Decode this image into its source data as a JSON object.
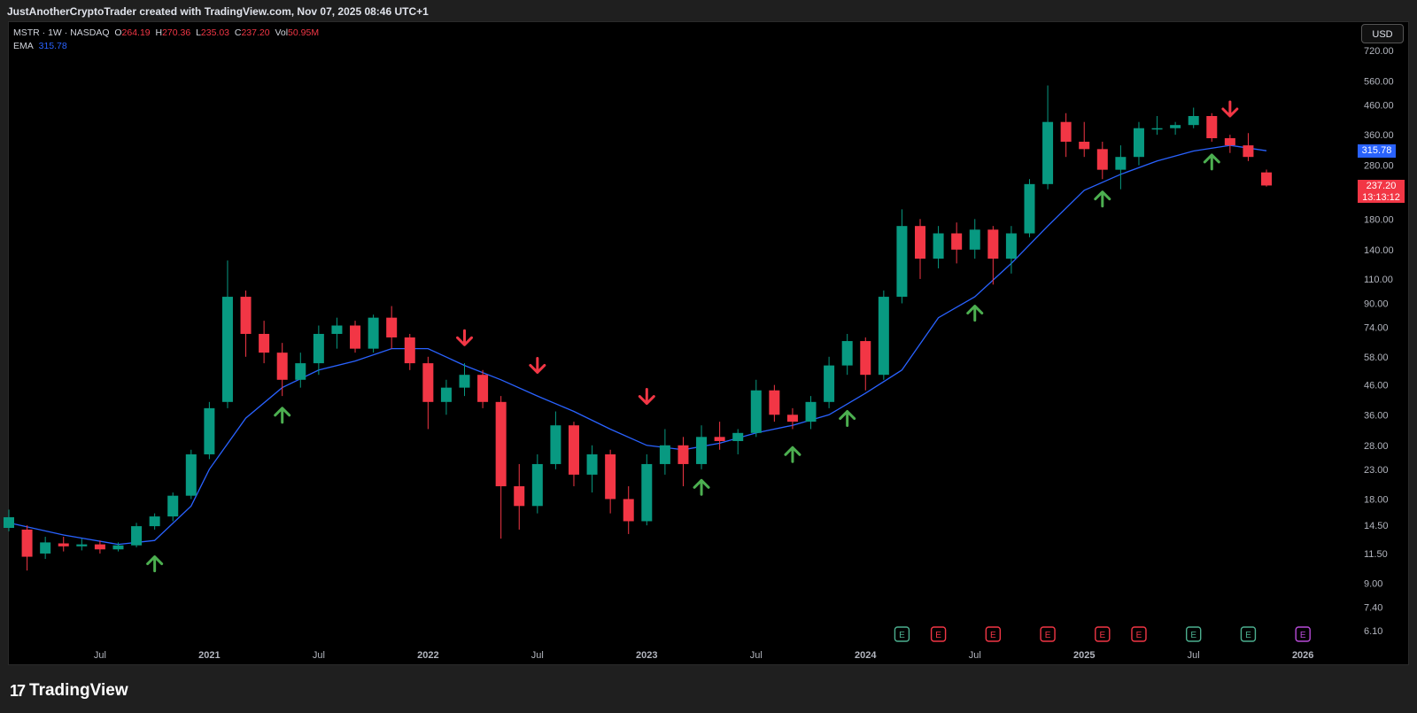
{
  "header": {
    "attribution": "JustAnotherCryptoTrader created with TradingView.com, Nov 07, 2025 08:46 UTC+1"
  },
  "legend": {
    "symbol": "MSTR · 1W · NASDAQ",
    "open_label": "O",
    "open": "264.19",
    "high_label": "H",
    "high": "270.36",
    "low_label": "L",
    "low": "235.03",
    "close_label": "C",
    "close": "237.20",
    "vol_label": "Vol",
    "volume": "50.95M",
    "ema_label": "EMA",
    "ema_value": "315.78"
  },
  "currency": "USD",
  "price_badges": {
    "ema": "315.78",
    "last": "237.20",
    "countdown": "13:13:12"
  },
  "footer": {
    "brand": "TradingView",
    "brand_mark": "17"
  },
  "colors": {
    "up": "#089981",
    "down": "#f23645",
    "ema": "#2962ff",
    "bg": "#000000",
    "arrow_up": "#4caf50",
    "arrow_down": "#f23645",
    "ema_badge": "#2962ff",
    "last_badge": "#f23645"
  },
  "chart_data": {
    "type": "candlestick",
    "scale": "log",
    "yticks": [
      "720.00",
      "560.00",
      "460.00",
      "360.00",
      "280.00",
      "180.00",
      "140.00",
      "110.00",
      "90.00",
      "74.00",
      "58.00",
      "46.00",
      "36.00",
      "28.00",
      "23.00",
      "18.00",
      "14.50",
      "11.50",
      "9.00",
      "7.40",
      "6.10"
    ],
    "xticks": [
      "Jul",
      "2021",
      "Jul",
      "2022",
      "Jul",
      "2023",
      "Jul",
      "2024",
      "Jul",
      "2025",
      "Jul",
      "2026"
    ],
    "ylim": [
      6.1,
      720
    ],
    "ema_series": [
      {
        "date": "2020-02",
        "value": 14.8
      },
      {
        "date": "2020-05",
        "value": 13.4
      },
      {
        "date": "2020-08",
        "value": 12.4
      },
      {
        "date": "2020-10",
        "value": 12.8
      },
      {
        "date": "2020-12",
        "value": 17
      },
      {
        "date": "2021-01",
        "value": 23
      },
      {
        "date": "2021-03",
        "value": 35
      },
      {
        "date": "2021-05",
        "value": 45
      },
      {
        "date": "2021-07",
        "value": 52
      },
      {
        "date": "2021-09",
        "value": 56
      },
      {
        "date": "2021-11",
        "value": 62
      },
      {
        "date": "2022-01",
        "value": 62
      },
      {
        "date": "2022-03",
        "value": 54
      },
      {
        "date": "2022-05",
        "value": 48
      },
      {
        "date": "2022-07",
        "value": 42
      },
      {
        "date": "2022-09",
        "value": 37
      },
      {
        "date": "2022-11",
        "value": 32
      },
      {
        "date": "2023-01",
        "value": 28
      },
      {
        "date": "2023-03",
        "value": 27
      },
      {
        "date": "2023-05",
        "value": 28.5
      },
      {
        "date": "2023-07",
        "value": 31
      },
      {
        "date": "2023-09",
        "value": 33
      },
      {
        "date": "2023-11",
        "value": 36
      },
      {
        "date": "2024-01",
        "value": 43
      },
      {
        "date": "2024-03",
        "value": 52
      },
      {
        "date": "2024-05",
        "value": 80
      },
      {
        "date": "2024-07",
        "value": 95
      },
      {
        "date": "2024-09",
        "value": 125
      },
      {
        "date": "2024-11",
        "value": 170
      },
      {
        "date": "2025-01",
        "value": 228
      },
      {
        "date": "2025-03",
        "value": 260
      },
      {
        "date": "2025-05",
        "value": 290
      },
      {
        "date": "2025-07",
        "value": 315
      },
      {
        "date": "2025-09",
        "value": 330
      },
      {
        "date": "2025-11",
        "value": 315.78
      }
    ],
    "candles": [
      {
        "date": "2020-02",
        "o": 14.2,
        "h": 16.5,
        "l": 13.8,
        "c": 15.5
      },
      {
        "date": "2020-03",
        "o": 14,
        "h": 14.5,
        "l": 10,
        "c": 11.2
      },
      {
        "date": "2020-04",
        "o": 11.5,
        "h": 13.2,
        "l": 11,
        "c": 12.6
      },
      {
        "date": "2020-05",
        "o": 12.5,
        "h": 13.2,
        "l": 11.7,
        "c": 12.2
      },
      {
        "date": "2020-06",
        "o": 12.2,
        "h": 13,
        "l": 11.8,
        "c": 12.4
      },
      {
        "date": "2020-07",
        "o": 12.4,
        "h": 12.8,
        "l": 11.5,
        "c": 11.9
      },
      {
        "date": "2020-08",
        "o": 11.9,
        "h": 12.6,
        "l": 11.7,
        "c": 12.3
      },
      {
        "date": "2020-09",
        "o": 12.3,
        "h": 14.8,
        "l": 12.1,
        "c": 14.4
      },
      {
        "date": "2020-10",
        "o": 14.4,
        "h": 16,
        "l": 14,
        "c": 15.6
      },
      {
        "date": "2020-11",
        "o": 15.6,
        "h": 19,
        "l": 15,
        "c": 18.5
      },
      {
        "date": "2020-12",
        "o": 18.5,
        "h": 27,
        "l": 18,
        "c": 26
      },
      {
        "date": "2021-01",
        "o": 26,
        "h": 40,
        "l": 25,
        "c": 38
      },
      {
        "date": "2021-02",
        "o": 40,
        "h": 128,
        "l": 38,
        "c": 95
      },
      {
        "date": "2021-03",
        "o": 95,
        "h": 100,
        "l": 58,
        "c": 70
      },
      {
        "date": "2021-04",
        "o": 70,
        "h": 78,
        "l": 55,
        "c": 60
      },
      {
        "date": "2021-05",
        "o": 60,
        "h": 65,
        "l": 42,
        "c": 48
      },
      {
        "date": "2021-06",
        "o": 48,
        "h": 60,
        "l": 45,
        "c": 55
      },
      {
        "date": "2021-07",
        "o": 55,
        "h": 75,
        "l": 50,
        "c": 70
      },
      {
        "date": "2021-08",
        "o": 70,
        "h": 80,
        "l": 62,
        "c": 75
      },
      {
        "date": "2021-09",
        "o": 75,
        "h": 78,
        "l": 60,
        "c": 62
      },
      {
        "date": "2021-10",
        "o": 62,
        "h": 82,
        "l": 60,
        "c": 80
      },
      {
        "date": "2021-11",
        "o": 80,
        "h": 88,
        "l": 62,
        "c": 68
      },
      {
        "date": "2021-12",
        "o": 68,
        "h": 70,
        "l": 52,
        "c": 55
      },
      {
        "date": "2022-01",
        "o": 55,
        "h": 58,
        "l": 32,
        "c": 40
      },
      {
        "date": "2022-02",
        "o": 40,
        "h": 48,
        "l": 36,
        "c": 45
      },
      {
        "date": "2022-03",
        "o": 45,
        "h": 55,
        "l": 42,
        "c": 50
      },
      {
        "date": "2022-04",
        "o": 50,
        "h": 52,
        "l": 38,
        "c": 40
      },
      {
        "date": "2022-05",
        "o": 40,
        "h": 42,
        "l": 13,
        "c": 20
      },
      {
        "date": "2022-06",
        "o": 20,
        "h": 24,
        "l": 14,
        "c": 17
      },
      {
        "date": "2022-07",
        "o": 17,
        "h": 26,
        "l": 16,
        "c": 24
      },
      {
        "date": "2022-08",
        "o": 24,
        "h": 37,
        "l": 23,
        "c": 33
      },
      {
        "date": "2022-09",
        "o": 33,
        "h": 34,
        "l": 20,
        "c": 22
      },
      {
        "date": "2022-10",
        "o": 22,
        "h": 28,
        "l": 19,
        "c": 26
      },
      {
        "date": "2022-11",
        "o": 26,
        "h": 27,
        "l": 16,
        "c": 18
      },
      {
        "date": "2022-12",
        "o": 18,
        "h": 20,
        "l": 13.5,
        "c": 15
      },
      {
        "date": "2023-01",
        "o": 15,
        "h": 26,
        "l": 14.5,
        "c": 24
      },
      {
        "date": "2023-02",
        "o": 24,
        "h": 32,
        "l": 22,
        "c": 28
      },
      {
        "date": "2023-03",
        "o": 28,
        "h": 30,
        "l": 20,
        "c": 24
      },
      {
        "date": "2023-04",
        "o": 24,
        "h": 33,
        "l": 23,
        "c": 30
      },
      {
        "date": "2023-05",
        "o": 30,
        "h": 34,
        "l": 27,
        "c": 29
      },
      {
        "date": "2023-06",
        "o": 29,
        "h": 32,
        "l": 26,
        "c": 31
      },
      {
        "date": "2023-07",
        "o": 31,
        "h": 48,
        "l": 30,
        "c": 44
      },
      {
        "date": "2023-08",
        "o": 44,
        "h": 46,
        "l": 34,
        "c": 36
      },
      {
        "date": "2023-09",
        "o": 36,
        "h": 38,
        "l": 32,
        "c": 34
      },
      {
        "date": "2023-10",
        "o": 34,
        "h": 42,
        "l": 32,
        "c": 40
      },
      {
        "date": "2023-11",
        "o": 40,
        "h": 58,
        "l": 38,
        "c": 54
      },
      {
        "date": "2023-12",
        "o": 54,
        "h": 70,
        "l": 50,
        "c": 66
      },
      {
        "date": "2024-01",
        "o": 66,
        "h": 68,
        "l": 44,
        "c": 50
      },
      {
        "date": "2024-02",
        "o": 50,
        "h": 100,
        "l": 48,
        "c": 95
      },
      {
        "date": "2024-03",
        "o": 95,
        "h": 195,
        "l": 90,
        "c": 170
      },
      {
        "date": "2024-04",
        "o": 170,
        "h": 180,
        "l": 110,
        "c": 130
      },
      {
        "date": "2024-05",
        "o": 130,
        "h": 170,
        "l": 120,
        "c": 160
      },
      {
        "date": "2024-06",
        "o": 160,
        "h": 175,
        "l": 125,
        "c": 140
      },
      {
        "date": "2024-07",
        "o": 140,
        "h": 180,
        "l": 130,
        "c": 165
      },
      {
        "date": "2024-08",
        "o": 165,
        "h": 170,
        "l": 105,
        "c": 130
      },
      {
        "date": "2024-09",
        "o": 130,
        "h": 170,
        "l": 115,
        "c": 160
      },
      {
        "date": "2024-10",
        "o": 160,
        "h": 250,
        "l": 155,
        "c": 240
      },
      {
        "date": "2024-11",
        "o": 240,
        "h": 540,
        "l": 230,
        "c": 400
      },
      {
        "date": "2024-12",
        "o": 400,
        "h": 430,
        "l": 300,
        "c": 340
      },
      {
        "date": "2025-01",
        "o": 340,
        "h": 400,
        "l": 300,
        "c": 320
      },
      {
        "date": "2025-02",
        "o": 320,
        "h": 340,
        "l": 250,
        "c": 270
      },
      {
        "date": "2025-03",
        "o": 270,
        "h": 330,
        "l": 230,
        "c": 300
      },
      {
        "date": "2025-04",
        "o": 300,
        "h": 400,
        "l": 280,
        "c": 380
      },
      {
        "date": "2025-05",
        "o": 380,
        "h": 420,
        "l": 360,
        "c": 380
      },
      {
        "date": "2025-06",
        "o": 380,
        "h": 400,
        "l": 360,
        "c": 390
      },
      {
        "date": "2025-07",
        "o": 390,
        "h": 450,
        "l": 380,
        "c": 420
      },
      {
        "date": "2025-08",
        "o": 420,
        "h": 430,
        "l": 340,
        "c": 350
      },
      {
        "date": "2025-09",
        "o": 350,
        "h": 360,
        "l": 310,
        "c": 330
      },
      {
        "date": "2025-10",
        "o": 330,
        "h": 365,
        "l": 290,
        "c": 300
      },
      {
        "date": "2025-11",
        "o": 264.19,
        "h": 270.36,
        "l": 235.03,
        "c": 237.2
      }
    ],
    "signals_up": [
      {
        "date": "2020-10",
        "price": 11.2
      },
      {
        "date": "2021-05",
        "price": 38
      },
      {
        "date": "2023-04",
        "price": 21
      },
      {
        "date": "2023-09",
        "price": 27.5
      },
      {
        "date": "2023-12",
        "price": 37
      },
      {
        "date": "2024-07",
        "price": 88
      },
      {
        "date": "2025-02",
        "price": 225
      },
      {
        "date": "2025-08",
        "price": 305
      }
    ],
    "signals_down": [
      {
        "date": "2022-03",
        "price": 64
      },
      {
        "date": "2022-07",
        "price": 51
      },
      {
        "date": "2023-01",
        "price": 39.5
      },
      {
        "date": "2025-09",
        "price": 420
      }
    ],
    "earnings": [
      {
        "date": "2024-03",
        "type": "pos"
      },
      {
        "date": "2024-05",
        "type": "neg"
      },
      {
        "date": "2024-08",
        "type": "neg"
      },
      {
        "date": "2024-11",
        "type": "neg"
      },
      {
        "date": "2025-02",
        "type": "neg"
      },
      {
        "date": "2025-04",
        "type": "neg"
      },
      {
        "date": "2025-07",
        "type": "pos"
      },
      {
        "date": "2025-10",
        "type": "pos"
      },
      {
        "date": "2026-01",
        "type": "future"
      }
    ],
    "earnings_label": "E"
  }
}
